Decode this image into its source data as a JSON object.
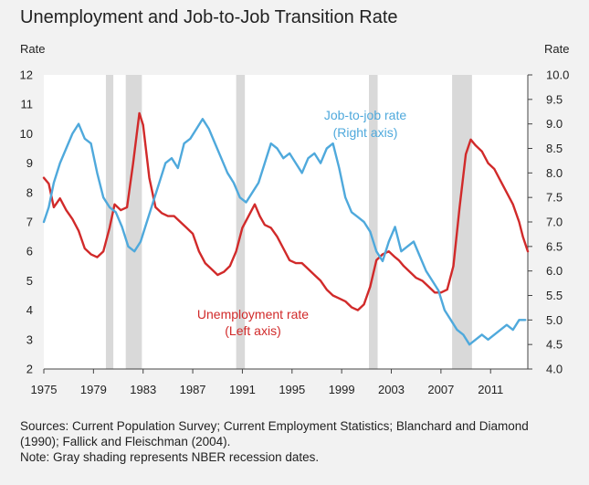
{
  "title": "Unemployment and Job-to-Job Transition Rate",
  "footer": {
    "sources": "Sources: Current Population Survey; Current Employment Statistics; Blanchard and Diamond (1990); Fallick and Fleischman (2004).",
    "note": "Note: Gray shading represents NBER recession dates."
  },
  "colors": {
    "unemployment": "#d12a2a",
    "job_to_job": "#4fa9dc",
    "recession": "#d9d9d9",
    "plot_bg": "#ffffff"
  },
  "chart_data": {
    "type": "line",
    "title": "Unemployment and Job-to-Job Transition Rate",
    "xlim": [
      1975,
      2014
    ],
    "x_ticks": [
      "1975",
      "1979",
      "1983",
      "1987",
      "1991",
      "1995",
      "1999",
      "2003",
      "2007",
      "2011"
    ],
    "left_axis": {
      "label": "Rate",
      "ylim": [
        2,
        12
      ],
      "ticks": [
        "2",
        "3",
        "4",
        "5",
        "6",
        "7",
        "8",
        "9",
        "10",
        "11",
        "12"
      ]
    },
    "right_axis": {
      "label": "Rate",
      "ylim": [
        4.0,
        10.0
      ],
      "ticks": [
        "4.0",
        "4.5",
        "5.0",
        "5.5",
        "6.0",
        "6.5",
        "7.0",
        "7.5",
        "8.0",
        "8.5",
        "9.0",
        "9.5",
        "10.0"
      ]
    },
    "recessions": [
      [
        1980.0,
        1980.6
      ],
      [
        1981.6,
        1982.9
      ],
      [
        1990.5,
        1991.2
      ],
      [
        2001.2,
        2001.9
      ],
      [
        2007.9,
        2009.5
      ]
    ],
    "annotations": {
      "unemployment": [
        "Unemployment rate",
        "(Left axis)"
      ],
      "job_to_job": [
        "Job-to-job rate",
        "(Right axis)"
      ]
    },
    "series": [
      {
        "name": "Unemployment rate",
        "axis": "left",
        "x": [
          1975.0,
          1975.4,
          1975.8,
          1976.3,
          1976.8,
          1977.3,
          1977.8,
          1978.3,
          1978.8,
          1979.3,
          1979.8,
          1980.3,
          1980.7,
          1981.2,
          1981.7,
          1982.2,
          1982.7,
          1983.0,
          1983.5,
          1984.0,
          1984.5,
          1985.0,
          1985.5,
          1986.0,
          1986.5,
          1987.0,
          1987.5,
          1988.0,
          1988.5,
          1989.0,
          1989.5,
          1990.0,
          1990.5,
          1991.0,
          1991.5,
          1992.0,
          1992.4,
          1992.8,
          1993.3,
          1993.8,
          1994.3,
          1994.8,
          1995.3,
          1995.8,
          1996.3,
          1996.8,
          1997.3,
          1997.8,
          1998.3,
          1998.8,
          1999.3,
          1999.8,
          2000.3,
          2000.8,
          2001.3,
          2001.8,
          2002.3,
          2002.8,
          2003.3,
          2003.6,
          2004.0,
          2004.5,
          2005.0,
          2005.5,
          2006.0,
          2006.5,
          2007.0,
          2007.5,
          2008.0,
          2008.5,
          2009.0,
          2009.4,
          2009.8,
          2010.3,
          2010.8,
          2011.3,
          2011.8,
          2012.3,
          2012.8,
          2013.3,
          2013.6,
          2014.0
        ],
        "values": [
          8.5,
          8.3,
          7.5,
          7.8,
          7.4,
          7.1,
          6.7,
          6.1,
          5.9,
          5.8,
          6.0,
          6.8,
          7.6,
          7.4,
          7.5,
          9.0,
          10.7,
          10.3,
          8.5,
          7.5,
          7.3,
          7.2,
          7.2,
          7.0,
          6.8,
          6.6,
          6.0,
          5.6,
          5.4,
          5.2,
          5.3,
          5.5,
          6.0,
          6.8,
          7.2,
          7.6,
          7.2,
          6.9,
          6.8,
          6.5,
          6.1,
          5.7,
          5.6,
          5.6,
          5.4,
          5.2,
          5.0,
          4.7,
          4.5,
          4.4,
          4.3,
          4.1,
          4.0,
          4.2,
          4.8,
          5.7,
          5.9,
          6.0,
          5.8,
          5.7,
          5.5,
          5.3,
          5.1,
          5.0,
          4.8,
          4.6,
          4.6,
          4.7,
          5.5,
          7.5,
          9.3,
          9.8,
          9.6,
          9.4,
          9.0,
          8.8,
          8.4,
          8.0,
          7.6,
          7.0,
          6.5,
          6.0
        ]
      },
      {
        "name": "Job-to-job rate",
        "axis": "right",
        "x": [
          1975.0,
          1975.4,
          1975.8,
          1976.3,
          1976.8,
          1977.3,
          1977.8,
          1978.3,
          1978.8,
          1979.3,
          1979.8,
          1980.3,
          1980.8,
          1981.3,
          1981.8,
          1982.3,
          1982.8,
          1983.3,
          1983.8,
          1984.3,
          1984.8,
          1985.3,
          1985.8,
          1986.3,
          1986.8,
          1987.3,
          1987.8,
          1988.3,
          1988.8,
          1989.3,
          1989.8,
          1990.3,
          1990.8,
          1991.3,
          1991.8,
          1992.3,
          1992.8,
          1993.3,
          1993.8,
          1994.3,
          1994.8,
          1995.3,
          1995.8,
          1996.3,
          1996.8,
          1997.3,
          1997.8,
          1998.3,
          1998.8,
          1999.3,
          1999.8,
          2000.3,
          2000.8,
          2001.3,
          2001.8,
          2002.3,
          2002.8,
          2003.3,
          2003.8,
          2004.3,
          2004.8,
          2005.3,
          2005.8,
          2006.3,
          2006.8,
          2007.3,
          2007.8,
          2008.3,
          2008.8,
          2009.3,
          2009.8,
          2010.3,
          2010.8,
          2011.3,
          2011.8,
          2012.3,
          2012.8,
          2013.3,
          2013.8
        ],
        "values": [
          7.0,
          7.3,
          7.8,
          8.2,
          8.5,
          8.8,
          9.0,
          8.7,
          8.6,
          8.0,
          7.5,
          7.3,
          7.2,
          6.9,
          6.5,
          6.4,
          6.6,
          7.0,
          7.4,
          7.8,
          8.2,
          8.3,
          8.1,
          8.6,
          8.7,
          8.9,
          9.1,
          8.9,
          8.6,
          8.3,
          8.0,
          7.8,
          7.5,
          7.4,
          7.6,
          7.8,
          8.2,
          8.6,
          8.5,
          8.3,
          8.4,
          8.2,
          8.0,
          8.3,
          8.4,
          8.2,
          8.5,
          8.6,
          8.1,
          7.5,
          7.2,
          7.1,
          7.0,
          6.8,
          6.4,
          6.2,
          6.6,
          6.9,
          6.4,
          6.5,
          6.6,
          6.3,
          6.0,
          5.8,
          5.6,
          5.2,
          5.0,
          4.8,
          4.7,
          4.5,
          4.6,
          4.7,
          4.6,
          4.7,
          4.8,
          4.9,
          4.8,
          5.0,
          5.0
        ]
      }
    ]
  }
}
